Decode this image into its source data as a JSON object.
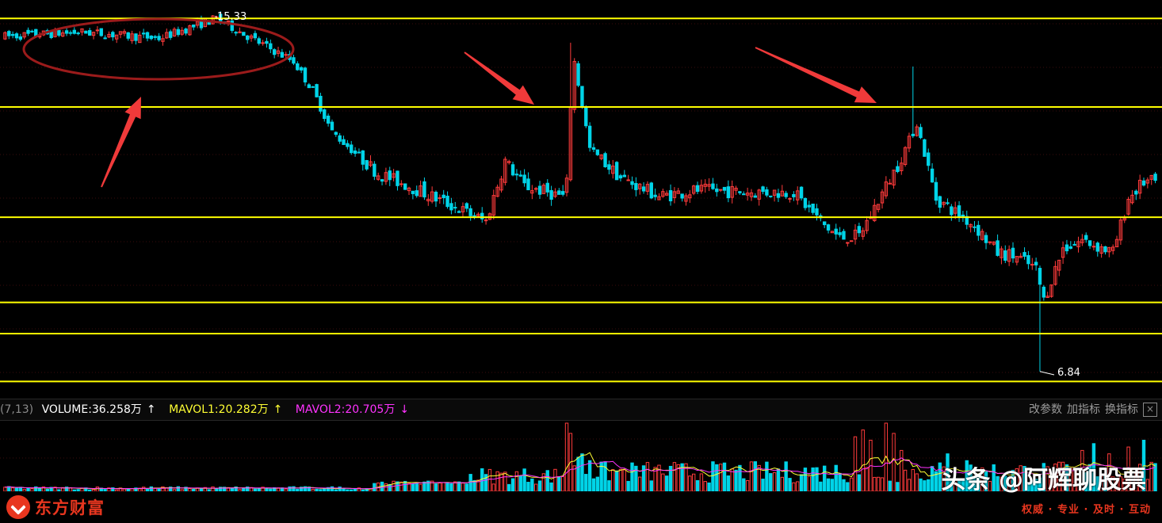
{
  "chart_data": [
    {
      "type": "candlestick",
      "price_range": [
        6.5,
        15.6
      ],
      "horizontal_levels": [
        15.33,
        13.2,
        10.55,
        8.5,
        7.75,
        6.6
      ],
      "annotations": {
        "high_label": "15.33",
        "low_label": "6.84"
      },
      "colors": {
        "up": "#ff3b3b",
        "down": "#00d4e8",
        "levels": "#ffff00",
        "ellipse": "#9b1b1b",
        "arrows": "#f03a3a"
      },
      "candle_count": 300,
      "price_path": [
        [
          0,
          14.9
        ],
        [
          20,
          15.0
        ],
        [
          40,
          14.85
        ],
        [
          55,
          15.33
        ],
        [
          65,
          14.8
        ],
        [
          75,
          14.3
        ],
        [
          80,
          13.6
        ],
        [
          85,
          12.6
        ],
        [
          97,
          11.6
        ],
        [
          105,
          11.3
        ],
        [
          125,
          10.45
        ],
        [
          130,
          11.9
        ],
        [
          135,
          11.3
        ],
        [
          145,
          11.05
        ],
        [
          146,
          11.35
        ],
        [
          147,
          14.8
        ],
        [
          152,
          12.2
        ],
        [
          160,
          11.5
        ],
        [
          170,
          11.05
        ],
        [
          180,
          11.2
        ],
        [
          195,
          11.15
        ],
        [
          205,
          11.15
        ],
        [
          213,
          10.35
        ],
        [
          217,
          10.05
        ],
        [
          222,
          10.1
        ],
        [
          232,
          11.8
        ],
        [
          237,
          12.8
        ],
        [
          242,
          11.0
        ],
        [
          252,
          10.35
        ],
        [
          258,
          9.7
        ],
        [
          263,
          9.6
        ],
        [
          268,
          9.3
        ],
        [
          270,
          8.55
        ],
        [
          275,
          9.8
        ],
        [
          280,
          10.0
        ],
        [
          288,
          9.7
        ],
        [
          292,
          11.0
        ],
        [
          296,
          11.4
        ]
      ]
    },
    {
      "type": "bar",
      "series": [
        {
          "name": "VOLUME",
          "last_value": "36.258万"
        },
        {
          "name": "MAVOL1",
          "last_value": "20.282万"
        },
        {
          "name": "MAVOL2",
          "last_value": "20.705万"
        }
      ],
      "spikes": [
        [
          146,
          1.0
        ],
        [
          147,
          0.85
        ],
        [
          149,
          0.5
        ],
        [
          150,
          0.55
        ],
        [
          152,
          0.45
        ],
        [
          221,
          0.8
        ],
        [
          223,
          0.9
        ],
        [
          225,
          0.75
        ],
        [
          229,
          1.0
        ],
        [
          231,
          0.85
        ],
        [
          233,
          0.6
        ],
        [
          245,
          0.55
        ],
        [
          250,
          0.45
        ],
        [
          280,
          0.6
        ],
        [
          283,
          0.7
        ],
        [
          287,
          0.55
        ],
        [
          292,
          0.65
        ],
        [
          296,
          0.75
        ]
      ]
    }
  ],
  "volume_header": {
    "params": "(7,13)",
    "volume": "VOLUME:36.258万",
    "mavol1": "MAVOL1:20.282万",
    "mavol2": "MAVOL2:20.705万",
    "up_arrow": "↑",
    "down_arrow": "↓",
    "btn_params": "改参数",
    "btn_add": "加指标",
    "btn_switch": "换指标",
    "btn_close": "×"
  },
  "brand": {
    "name": "东方财富"
  },
  "watermark": {
    "main": "头条 @阿辉聊股票",
    "sub": "权威 · 专业 · 及时 · 互动"
  }
}
